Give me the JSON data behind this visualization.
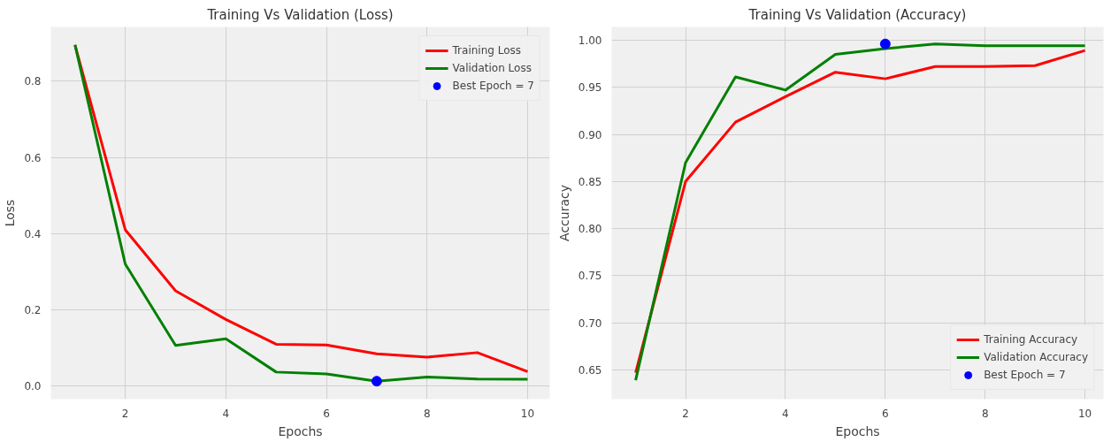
{
  "chart_data": [
    {
      "type": "line",
      "title": "Training Vs Validation (Loss)",
      "xlabel": "Epochs",
      "ylabel": "Loss",
      "x": [
        1,
        2,
        3,
        4,
        5,
        6,
        7,
        8,
        9,
        10
      ],
      "series": [
        {
          "name": "Training Loss",
          "color": "#ff0000",
          "values": [
            0.895,
            0.41,
            0.25,
            0.175,
            0.11,
            0.108,
            0.085,
            0.076,
            0.088,
            0.038
          ]
        },
        {
          "name": "Validation Loss",
          "color": "#008000",
          "values": [
            0.895,
            0.32,
            0.107,
            0.124,
            0.037,
            0.032,
            0.013,
            0.024,
            0.019,
            0.018
          ]
        },
        {
          "name": "Best Epoch = 7",
          "type": "scatter",
          "marker": "circle",
          "color": "#0000ff",
          "x": [
            7
          ],
          "values": [
            0.013
          ]
        }
      ],
      "xlim": [
        0.52,
        10.44
      ],
      "ylim": [
        -0.034,
        0.942
      ],
      "xticks": [
        2,
        4,
        6,
        8,
        10
      ],
      "yticks": [
        {
          "value": 0,
          "label": "0.0"
        },
        {
          "value": 0.2,
          "label": "0.2"
        },
        {
          "value": 0.4,
          "label": "0.4"
        },
        {
          "value": 0.6,
          "label": "0.6"
        },
        {
          "value": 0.8,
          "label": "0.8"
        }
      ],
      "grid": true,
      "legend": "top right"
    },
    {
      "type": "line",
      "title": "Training Vs Validation (Accuracy)",
      "xlabel": "Epochs",
      "ylabel": "Accuracy",
      "x": [
        1,
        2,
        3,
        4,
        5,
        6,
        7,
        8,
        9,
        10
      ],
      "series": [
        {
          "name": "Training Accuracy",
          "color": "#ff0000",
          "values": [
            0.647,
            0.85,
            0.913,
            0.94,
            0.966,
            0.959,
            0.972,
            0.972,
            0.973,
            0.989
          ]
        },
        {
          "name": "Validation Accuracy",
          "color": "#008000",
          "values": [
            0.639,
            0.87,
            0.961,
            0.947,
            0.985,
            0.991,
            0.996,
            0.994,
            0.994,
            0.994
          ]
        },
        {
          "name": "Best Epoch = 7",
          "type": "scatter",
          "marker": "circle",
          "color": "#0000ff",
          "x": [
            6
          ],
          "values": [
            0.996
          ]
        }
      ],
      "xlim": [
        0.52,
        10.37
      ],
      "ylim": [
        0.619,
        1.014
      ],
      "xticks": [
        2,
        4,
        6,
        8,
        10
      ],
      "yticks": [
        {
          "value": 0.65,
          "label": "0.65"
        },
        {
          "value": 0.7,
          "label": "0.70"
        },
        {
          "value": 0.75,
          "label": "0.75"
        },
        {
          "value": 0.8,
          "label": "0.80"
        },
        {
          "value": 0.85,
          "label": "0.85"
        },
        {
          "value": 0.9,
          "label": "0.90"
        },
        {
          "value": 0.95,
          "label": "0.95"
        },
        {
          "value": 1.0,
          "label": "1.00"
        }
      ],
      "grid": true,
      "legend": "bottom right"
    }
  ]
}
